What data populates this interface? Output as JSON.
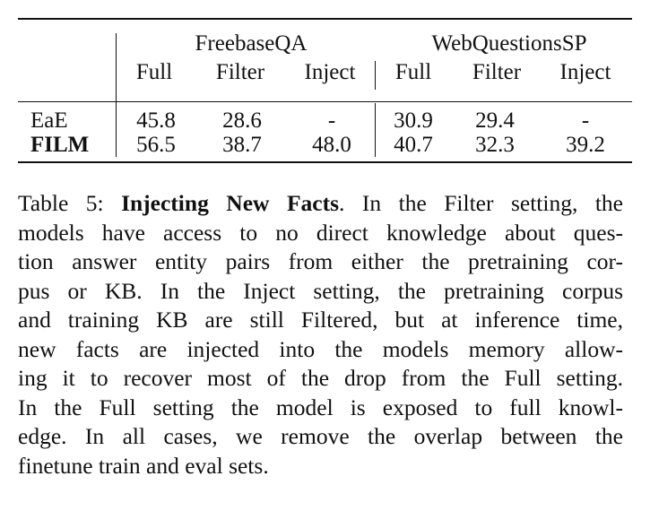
{
  "table": {
    "groups": [
      "FreebaseQA",
      "WebQuestionsSP"
    ],
    "subheaders": [
      "Full",
      "Filter",
      "Inject",
      "Full",
      "Filter",
      "Inject"
    ],
    "rows": [
      {
        "label": "EaE",
        "values": [
          "45.8",
          "28.6",
          "-",
          "30.9",
          "29.4",
          "-"
        ]
      },
      {
        "label": "FILM",
        "values": [
          "56.5",
          "38.7",
          "48.0",
          "40.7",
          "32.3",
          "39.2"
        ]
      }
    ]
  },
  "caption": {
    "prefix": "Table 5: ",
    "title": "Injecting New Facts",
    "lines": [
      ". In the Filter setting, the",
      "models have access to no direct knowledge about ques-",
      "tion answer entity pairs from either the pretraining cor-",
      "pus or KB. In the Inject setting, the pretraining corpus",
      "and training KB are still Filtered, but at inference time,",
      "new facts are injected into the models memory allow-",
      "ing it to recover most of the drop from the Full setting.",
      "In the Full setting the model is exposed to full knowl-",
      "edge. In all cases, we remove the overlap between the",
      "finetune train and eval sets."
    ]
  }
}
